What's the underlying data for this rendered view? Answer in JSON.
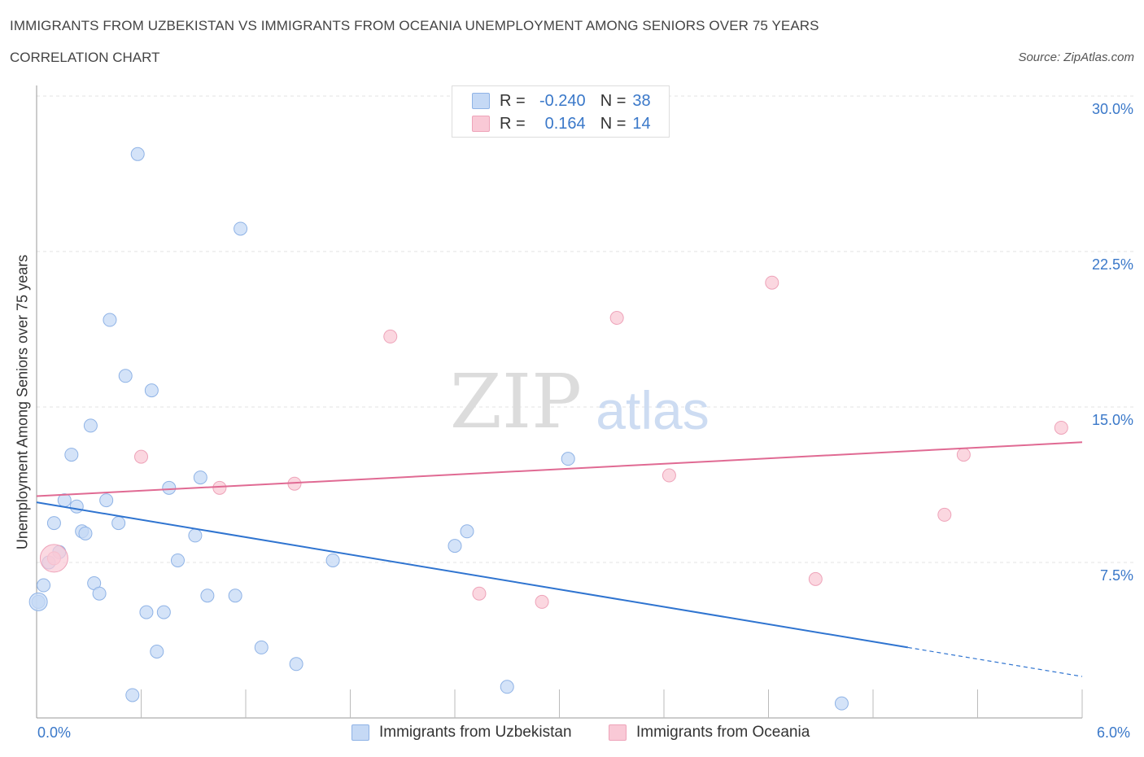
{
  "header": {
    "title": "IMMIGRANTS FROM UZBEKISTAN VS IMMIGRANTS FROM OCEANIA UNEMPLOYMENT AMONG SENIORS OVER 75 YEARS",
    "subtitle": "CORRELATION CHART",
    "source": "Source: ZipAtlas.com"
  },
  "watermark": {
    "zip": "ZIP",
    "atlas": "atlas"
  },
  "legend": {
    "r_label": "R =",
    "n_label": "N =",
    "series1": {
      "r": "-0.240",
      "n": "38"
    },
    "series2": {
      "r": "0.164",
      "n": "14"
    }
  },
  "colors": {
    "blue_fill": "#c5d9f5",
    "blue_stroke": "#8fb3e6",
    "blue_line": "#2f74d0",
    "pink_fill": "#f9c9d6",
    "pink_stroke": "#eea3b9",
    "pink_line": "#e06a93",
    "accent_text": "#3a78c9"
  },
  "chart_data": {
    "type": "scatter",
    "title": "IMMIGRANTS FROM UZBEKISTAN VS IMMIGRANTS FROM OCEANIA UNEMPLOYMENT AMONG SENIORS OVER 75 YEARS",
    "xlabel": "",
    "ylabel": "Unemployment Among Seniors over 75 years",
    "xlim": [
      0,
      6
    ],
    "ylim": [
      0,
      30
    ],
    "x_tick_labels": [
      "0.0%",
      "6.0%"
    ],
    "y_tick_labels": [
      "7.5%",
      "15.0%",
      "22.5%",
      "30.0%"
    ],
    "y_ticks": [
      7.5,
      15.0,
      22.5,
      30.0
    ],
    "grid": true,
    "series": [
      {
        "name": "Immigrants from Uzbekistan",
        "color": "blue",
        "r": -0.24,
        "n": 38,
        "points": [
          [
            0.01,
            5.6
          ],
          [
            0.04,
            6.4
          ],
          [
            0.07,
            7.5
          ],
          [
            0.1,
            9.4
          ],
          [
            0.13,
            8.0
          ],
          [
            0.16,
            10.5
          ],
          [
            0.2,
            12.7
          ],
          [
            0.23,
            10.2
          ],
          [
            0.26,
            9.0
          ],
          [
            0.28,
            8.9
          ],
          [
            0.31,
            14.1
          ],
          [
            0.33,
            6.5
          ],
          [
            0.36,
            6.0
          ],
          [
            0.4,
            10.5
          ],
          [
            0.42,
            19.2
          ],
          [
            0.47,
            9.4
          ],
          [
            0.51,
            16.5
          ],
          [
            0.55,
            1.1
          ],
          [
            0.58,
            27.2
          ],
          [
            0.63,
            5.1
          ],
          [
            0.66,
            15.8
          ],
          [
            0.69,
            3.2
          ],
          [
            0.73,
            5.1
          ],
          [
            0.76,
            11.1
          ],
          [
            0.81,
            7.6
          ],
          [
            0.91,
            8.8
          ],
          [
            0.94,
            11.6
          ],
          [
            0.98,
            5.9
          ],
          [
            1.14,
            5.9
          ],
          [
            1.17,
            23.6
          ],
          [
            1.29,
            3.4
          ],
          [
            1.49,
            2.6
          ],
          [
            1.7,
            7.6
          ],
          [
            2.4,
            8.3
          ],
          [
            2.47,
            9.0
          ],
          [
            2.7,
            1.5
          ],
          [
            3.05,
            12.5
          ],
          [
            4.62,
            0.7
          ]
        ],
        "trend": {
          "x_start": 0.0,
          "y_start": 10.4,
          "x_end": 5.0,
          "y_end": 3.4,
          "dashed_to_x": 6.0,
          "dashed_to_y": 2.0
        }
      },
      {
        "name": "Immigrants from Oceania",
        "color": "pink",
        "r": 0.164,
        "n": 14,
        "points": [
          [
            0.1,
            7.7
          ],
          [
            0.6,
            12.6
          ],
          [
            1.05,
            11.1
          ],
          [
            1.48,
            11.3
          ],
          [
            2.03,
            18.4
          ],
          [
            2.54,
            6.0
          ],
          [
            2.9,
            5.6
          ],
          [
            3.33,
            19.3
          ],
          [
            3.63,
            11.7
          ],
          [
            4.22,
            21.0
          ],
          [
            4.47,
            6.7
          ],
          [
            5.21,
            9.8
          ],
          [
            5.32,
            12.7
          ],
          [
            5.88,
            14.0
          ]
        ],
        "trend": {
          "x_start": 0.0,
          "y_start": 10.7,
          "x_end": 6.0,
          "y_end": 13.3
        }
      }
    ]
  }
}
